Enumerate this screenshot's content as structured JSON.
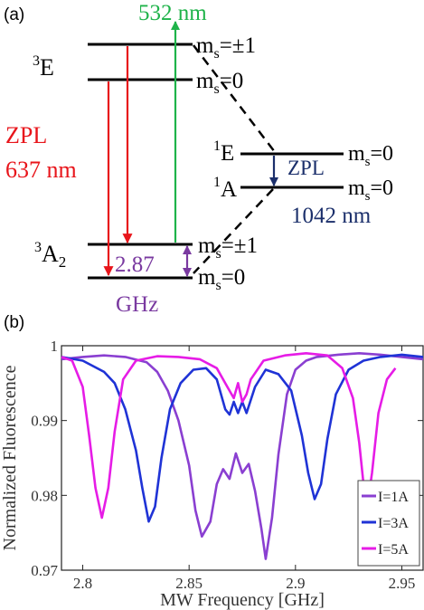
{
  "panel_a": {
    "label": "(a)",
    "excitation": "532 nm",
    "state_3E": {
      "sup": "3",
      "base": "E"
    },
    "state_3A2": {
      "sup": "3",
      "base": "A",
      "sub": "2"
    },
    "state_1E": {
      "sup": "1",
      "base": "E"
    },
    "state_1A": {
      "sup": "1",
      "base": "A"
    },
    "ms_pm1_top": {
      "base": "m",
      "sub": "s",
      "rest": "=±1"
    },
    "ms_0_top": {
      "base": "m",
      "sub": "s",
      "rest": "=0"
    },
    "ms_0_1E": {
      "base": "m",
      "sub": "s",
      "rest": "=0"
    },
    "ms_0_1A": {
      "base": "m",
      "sub": "s",
      "rest": "=0"
    },
    "ms_pm1_bottom": {
      "base": "m",
      "sub": "s",
      "rest": "=±1"
    },
    "ms_0_bottom": {
      "base": "m",
      "sub": "s",
      "rest": "=0"
    },
    "zpl_red": "ZPL",
    "wavelength_red": "637 nm",
    "zpl_blue": "ZPL",
    "wavelength_blue": "1042 nm",
    "splitting_value": "2.87",
    "splitting_unit": "GHz",
    "colors": {
      "green": "#1fb34a",
      "red": "#e8151b",
      "navy": "#1b2f6b",
      "purple": "#7a3aa0"
    }
  },
  "panel_b": {
    "label": "(b)",
    "chart_data": {
      "type": "line",
      "xlabel": "MW Frequency [GHz]",
      "ylabel": "Normalized Fluorescence",
      "xlim": [
        2.79,
        2.96
      ],
      "ylim": [
        0.97,
        1.0
      ],
      "xticks": [
        2.8,
        2.85,
        2.9,
        2.95
      ],
      "xtick_labels": [
        "2.8",
        "2.85",
        "2.9",
        "2.95"
      ],
      "yticks": [
        0.97,
        0.98,
        0.99,
        1.0
      ],
      "ytick_labels": [
        "0.97",
        "0.98",
        "0.99",
        "1"
      ],
      "legend_position": "bottom-right",
      "series": [
        {
          "name": "I=1A",
          "color": "#8a3fd1",
          "x": [
            2.79,
            2.8,
            2.81,
            2.82,
            2.83,
            2.835,
            2.84,
            2.845,
            2.85,
            2.853,
            2.856,
            2.86,
            2.863,
            2.866,
            2.869,
            2.872,
            2.875,
            2.878,
            2.881,
            2.884,
            2.886,
            2.889,
            2.892,
            2.896,
            2.9,
            2.905,
            2.91,
            2.92,
            2.93,
            2.94,
            2.95,
            2.96
          ],
          "y": [
            0.9982,
            0.9985,
            0.9987,
            0.9985,
            0.9978,
            0.9965,
            0.994,
            0.99,
            0.984,
            0.978,
            0.9745,
            0.9765,
            0.9815,
            0.9835,
            0.9822,
            0.9856,
            0.983,
            0.9842,
            0.9806,
            0.9755,
            0.9715,
            0.977,
            0.9855,
            0.9935,
            0.9968,
            0.998,
            0.9985,
            0.9988,
            0.999,
            0.9988,
            0.9985,
            0.9982
          ]
        },
        {
          "name": "I=3A",
          "color": "#1f33d6",
          "x": [
            2.79,
            2.8,
            2.81,
            2.815,
            2.82,
            2.825,
            2.828,
            2.831,
            2.834,
            2.837,
            2.841,
            2.846,
            2.852,
            2.858,
            2.863,
            2.867,
            2.869,
            2.871,
            2.873,
            2.875,
            2.877,
            2.881,
            2.886,
            2.892,
            2.898,
            2.903,
            2.906,
            2.909,
            2.912,
            2.915,
            2.919,
            2.925,
            2.932,
            2.94,
            2.95,
            2.96
          ],
          "y": [
            0.9985,
            0.998,
            0.9965,
            0.995,
            0.9915,
            0.986,
            0.981,
            0.9765,
            0.9785,
            0.985,
            0.9915,
            0.995,
            0.9968,
            0.997,
            0.9955,
            0.9915,
            0.9908,
            0.9925,
            0.991,
            0.9925,
            0.991,
            0.9945,
            0.9968,
            0.9962,
            0.994,
            0.988,
            0.983,
            0.9795,
            0.9815,
            0.9875,
            0.9935,
            0.9968,
            0.998,
            0.9985,
            0.9988,
            0.9985
          ]
        },
        {
          "name": "I=5A",
          "color": "#e61ce6",
          "x": [
            2.79,
            2.795,
            2.8,
            2.803,
            2.806,
            2.809,
            2.812,
            2.815,
            2.819,
            2.825,
            2.835,
            2.845,
            2.855,
            2.863,
            2.868,
            2.871,
            2.873,
            2.875,
            2.877,
            2.879,
            2.885,
            2.895,
            2.905,
            2.915,
            2.922,
            2.927,
            2.93,
            2.932,
            2.934,
            2.936,
            2.939,
            2.943,
            2.947
          ],
          "y": [
            0.9985,
            0.998,
            0.9945,
            0.988,
            0.981,
            0.977,
            0.981,
            0.9885,
            0.9955,
            0.998,
            0.9986,
            0.9985,
            0.9982,
            0.997,
            0.9945,
            0.993,
            0.995,
            0.9925,
            0.9935,
            0.9955,
            0.998,
            0.9987,
            0.999,
            0.9987,
            0.997,
            0.993,
            0.987,
            0.9815,
            0.979,
            0.983,
            0.991,
            0.9955,
            0.997
          ]
        }
      ]
    }
  }
}
